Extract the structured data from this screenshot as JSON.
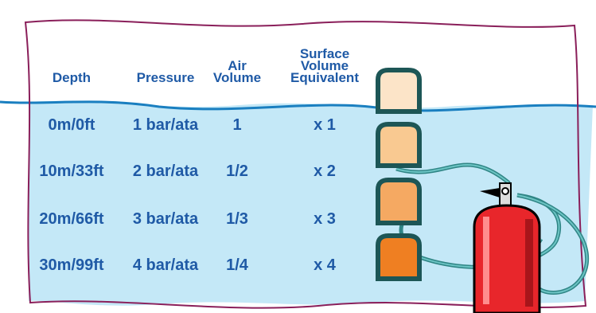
{
  "table": {
    "headers": [
      [
        "Depth"
      ],
      [
        "Pressure"
      ],
      [
        "Air",
        "Volume"
      ],
      [
        "Surface",
        "Volume",
        "Equivalent"
      ]
    ],
    "rows": [
      [
        "0m/0ft",
        "1 bar/ata",
        "1",
        "x 1"
      ],
      [
        "10m/33ft",
        "2 bar/ata",
        "1/2",
        "x 2"
      ],
      [
        "20m/66ft",
        "3 bar/ata",
        "1/3",
        "x 3"
      ],
      [
        "30m/99ft",
        "4 bar/ata",
        "1/4",
        "x 4"
      ]
    ]
  }
}
